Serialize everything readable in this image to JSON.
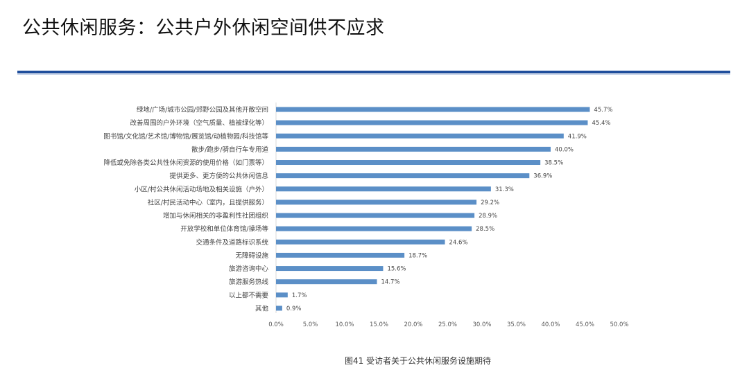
{
  "header": {
    "title": "公共休闲服务：公共户外休闲空间供不应求"
  },
  "chart_data": {
    "type": "bar",
    "orientation": "horizontal",
    "categories": [
      "绿地/广场/城市公园/郊野公园及其他开敞空间",
      "改善周围的户外环境（空气质量、植被绿化等）",
      "图书馆/文化馆/艺术馆/博物馆/展览馆/动植物园/科技馆等",
      "散步/跑步/骑自行车专用道",
      "降低或免除各类公共性休闲资源的使用价格（如门票等）",
      "提供更多、更方便的公共休闲信息",
      "小区/村公共休闲活动场地及相关设施（户外）",
      "社区/村民活动中心（室内，且提供服务）",
      "增加与休闲相关的非盈利性社团组织",
      "开放学校和单位体育馆/操场等",
      "交通条件及道路标识系统",
      "无障碍设施",
      "旅游咨询中心",
      "旅游服务热线",
      "以上都不需要",
      "其他"
    ],
    "values": [
      45.7,
      45.4,
      41.9,
      40.0,
      38.5,
      36.9,
      31.3,
      29.2,
      28.9,
      28.5,
      24.6,
      18.7,
      15.6,
      14.7,
      1.7,
      0.9
    ],
    "data_labels": [
      "45.7%",
      "45.4%",
      "41.9%",
      "40.0%",
      "38.5%",
      "36.9%",
      "31.3%",
      "29.2%",
      "28.9%",
      "28.5%",
      "24.6%",
      "18.7%",
      "15.6%",
      "14.7%",
      "1.7%",
      "0.9%"
    ],
    "xlim": [
      0,
      50
    ],
    "xticks": [
      "0.0%",
      "5.0%",
      "10.0%",
      "15.0%",
      "20.0%",
      "25.0%",
      "30.0%",
      "35.0%",
      "40.0%",
      "45.0%",
      "50.0%"
    ],
    "grid": false,
    "bar_color": "#5b8fc7",
    "caption": "图41 受访者关于公共休闲服务设施期待"
  },
  "colors": {
    "rule": "#1f4e9c"
  }
}
